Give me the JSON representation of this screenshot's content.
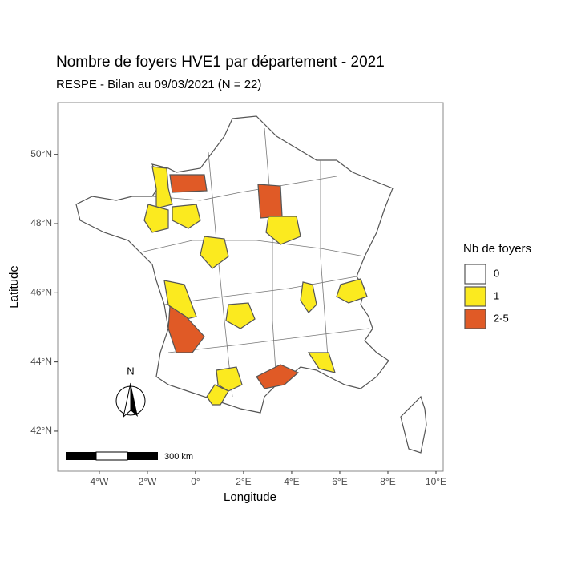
{
  "chart_data": {
    "type": "choropleth",
    "title": "Nombre de foyers HVE1 par département - 2021",
    "subtitle": "RESPE - Bilan au 09/03/2021 (N = 22)",
    "x_label": "Longitude",
    "y_label": "Latitude",
    "xlim": [
      -5.73,
      10.3
    ],
    "ylim": [
      40.84,
      51.5
    ],
    "xticks": [
      {
        "value": -4,
        "label": "4°W"
      },
      {
        "value": -2,
        "label": "2°W"
      },
      {
        "value": 0,
        "label": "0°"
      },
      {
        "value": 2,
        "label": "2°E"
      },
      {
        "value": 4,
        "label": "4°E"
      },
      {
        "value": 6,
        "label": "6°E"
      },
      {
        "value": 8,
        "label": "8°E"
      },
      {
        "value": 10,
        "label": "10°E"
      }
    ],
    "yticks": [
      {
        "value": 42,
        "label": "42°N"
      },
      {
        "value": 44,
        "label": "44°N"
      },
      {
        "value": 46,
        "label": "46°N"
      },
      {
        "value": 48,
        "label": "48°N"
      },
      {
        "value": 50,
        "label": "50°N"
      }
    ],
    "legend": {
      "title": "Nb de foyers",
      "entries": [
        {
          "label": "0",
          "color": "#ffffff"
        },
        {
          "label": "1",
          "color": "#fbea1f"
        },
        {
          "label": "2-5",
          "color": "#e05a26"
        }
      ]
    },
    "scale_bar_label": "300 km",
    "north_label": "N"
  }
}
